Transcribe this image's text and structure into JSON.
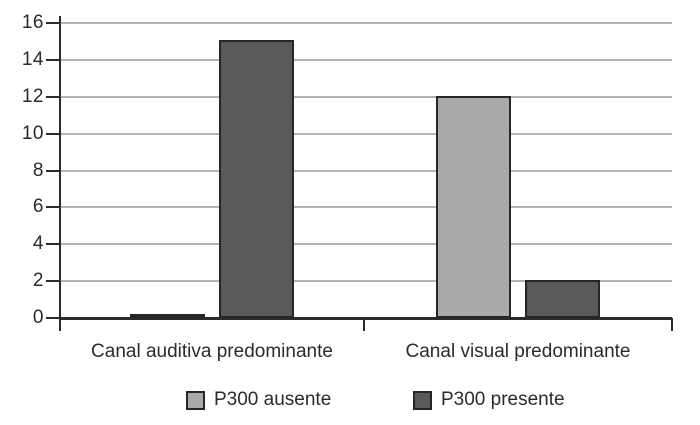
{
  "chart_data": {
    "type": "bar",
    "title": "",
    "xlabel": "",
    "ylabel": "",
    "categories": [
      "Canal auditiva predominante",
      "Canal visual predominante"
    ],
    "series": [
      {
        "name": "P300 ausente",
        "color": "#a9a9a9",
        "values": [
          0.1,
          12.05
        ]
      },
      {
        "name": "P300 presente",
        "color": "#595959",
        "values": [
          15.1,
          2.05
        ]
      }
    ],
    "ylim": [
      0,
      16
    ],
    "yticks": [
      0,
      2,
      4,
      6,
      8,
      10,
      12,
      14,
      16
    ],
    "grid": true,
    "legend_position": "bottom",
    "colors": {
      "grid": "#b3b3b3",
      "axis": "#2b2b2b",
      "bar_border": "#262626",
      "text": "#2b2b2b",
      "background": "#ffffff"
    }
  }
}
